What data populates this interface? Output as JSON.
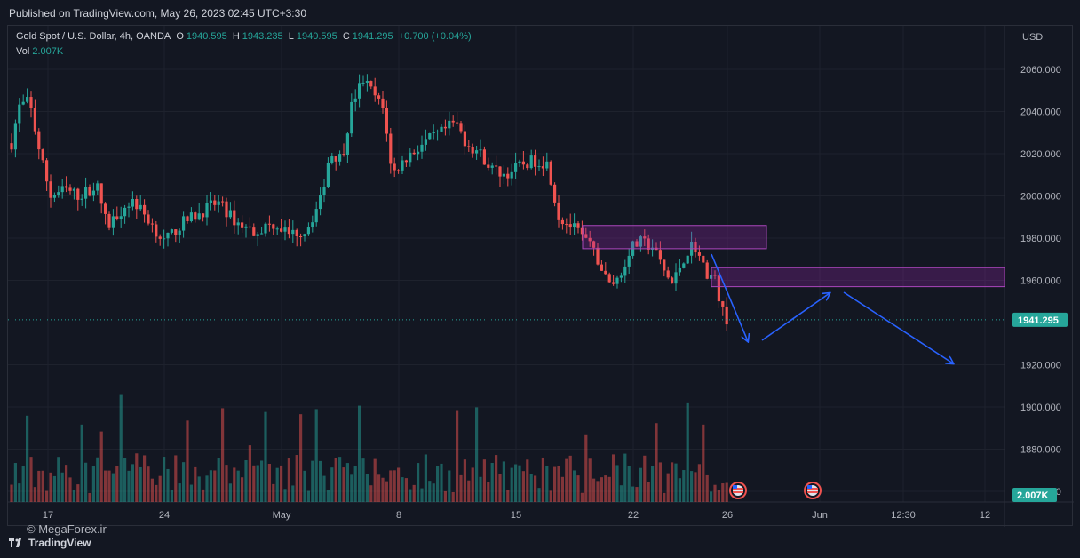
{
  "header": {
    "published": "Published on TradingView.com, May 26, 2023 02:45 UTC+3:30"
  },
  "legend": {
    "title": "Gold Spot / U.S. Dollar, 4h, OANDA",
    "o_label": "O",
    "o_value": "1940.595",
    "h_label": "H",
    "h_value": "1943.235",
    "l_label": "L",
    "l_value": "1940.595",
    "c_label": "C",
    "c_value": "1941.295",
    "change": "+0.700 (+0.04%)",
    "vol_label": "Vol",
    "vol_value": "2.007K"
  },
  "axis": {
    "currency": "USD",
    "price_labels": [
      "2060.000",
      "2040.000",
      "2020.000",
      "2000.000",
      "1980.000",
      "1960.000",
      "1920.000",
      "1900.000",
      "1880.000",
      "1860.000"
    ],
    "current_price": "1941.295",
    "current_volume": "2.007K",
    "time_labels": [
      "17",
      "24",
      "May",
      "8",
      "15",
      "22",
      "26",
      "Jun",
      "12:30",
      "12"
    ]
  },
  "footer": {
    "watermark": "© MegaForex.ir",
    "brand": "TradingView"
  },
  "colors": {
    "up": "#26a69a",
    "down": "#ef5350",
    "zone": "#9c27b0",
    "arrow": "#2962ff",
    "bg": "#131722",
    "grid": "#1e222d"
  },
  "chart_data": {
    "type": "candlestick",
    "symbol": "Gold Spot / U.S. Dollar",
    "timeframe": "4h",
    "ylim": [
      1860,
      2070
    ],
    "last_close": 1941.295,
    "zones": [
      {
        "from": 1975,
        "to": 1986
      },
      {
        "from": 1957,
        "to": 1966
      }
    ],
    "projection_path": [
      1963,
      1935,
      1955,
      1920
    ]
  }
}
